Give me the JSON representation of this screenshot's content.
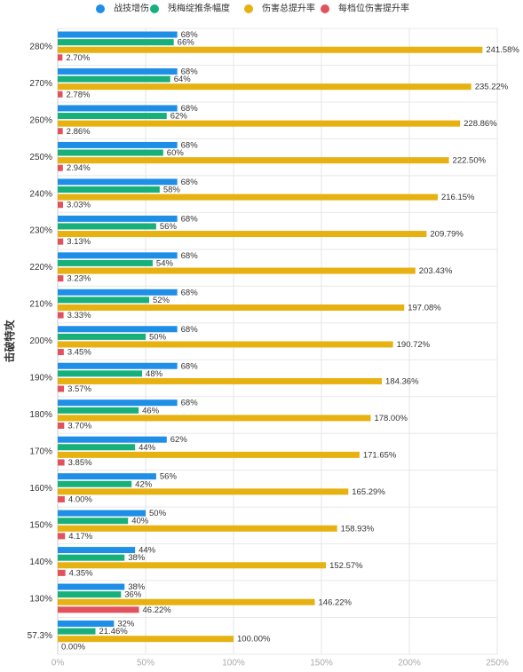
{
  "chart_data": {
    "type": "hbar",
    "y_axis_label": "击破特攻",
    "categories": [
      "280%",
      "270%",
      "260%",
      "250%",
      "240%",
      "230%",
      "220%",
      "210%",
      "200%",
      "190%",
      "180%",
      "170%",
      "160%",
      "150%",
      "140%",
      "130%",
      "57.3%"
    ],
    "series": [
      {
        "name": "战技增伤",
        "color": "#1e8ee6",
        "values": [
          68,
          68,
          68,
          68,
          68,
          68,
          68,
          68,
          68,
          68,
          68,
          62,
          56,
          50,
          44,
          38,
          32
        ],
        "value_labels": [
          "68%",
          "68%",
          "68%",
          "68%",
          "68%",
          "68%",
          "68%",
          "68%",
          "68%",
          "68%",
          "68%",
          "62%",
          "56%",
          "50%",
          "44%",
          "38%",
          "32%"
        ]
      },
      {
        "name": "残梅绽推条幅度",
        "color": "#17b07b",
        "values": [
          66,
          64,
          62,
          60,
          58,
          56,
          54,
          52,
          50,
          48,
          46,
          44,
          42,
          40,
          38,
          36,
          21.46
        ],
        "value_labels": [
          "66%",
          "64%",
          "62%",
          "60%",
          "58%",
          "56%",
          "54%",
          "52%",
          "50%",
          "48%",
          "46%",
          "44%",
          "42%",
          "40%",
          "38%",
          "36%",
          "21.46%"
        ]
      },
      {
        "name": "伤害总提升率",
        "color": "#e6b111",
        "values": [
          241.58,
          235.22,
          228.86,
          222.5,
          216.15,
          209.79,
          203.43,
          197.08,
          190.72,
          184.36,
          178,
          171.65,
          165.29,
          158.93,
          152.57,
          146.22,
          100
        ],
        "value_labels": [
          "241.58%",
          "235.22%",
          "228.86%",
          "222.50%",
          "216.15%",
          "209.79%",
          "203.43%",
          "197.08%",
          "190.72%",
          "184.36%",
          "178.00%",
          "171.65%",
          "165.29%",
          "158.93%",
          "152.57%",
          "146.22%",
          "100.00%"
        ]
      },
      {
        "name": "每档位伤害提升率",
        "color": "#e2525c",
        "values": [
          2.7,
          2.78,
          2.86,
          2.94,
          3.03,
          3.13,
          3.23,
          3.33,
          3.45,
          3.57,
          3.7,
          3.85,
          4,
          4.17,
          4.35,
          46.22,
          0
        ],
        "value_labels": [
          "2.70%",
          "2.78%",
          "2.86%",
          "2.94%",
          "3.03%",
          "3.13%",
          "3.23%",
          "3.33%",
          "3.45%",
          "3.57%",
          "3.70%",
          "3.85%",
          "4.00%",
          "4.17%",
          "4.35%",
          "46.22%",
          "0.00%"
        ]
      }
    ],
    "xlim": [
      0,
      250
    ],
    "xticks": [
      {
        "value": 0,
        "label": "0%"
      },
      {
        "value": 50,
        "label": "50%"
      },
      {
        "value": 100,
        "label": "100%"
      },
      {
        "value": 150,
        "label": "150%"
      },
      {
        "value": 200,
        "label": "200%"
      },
      {
        "value": 250,
        "label": "250%"
      }
    ],
    "grid": true
  }
}
